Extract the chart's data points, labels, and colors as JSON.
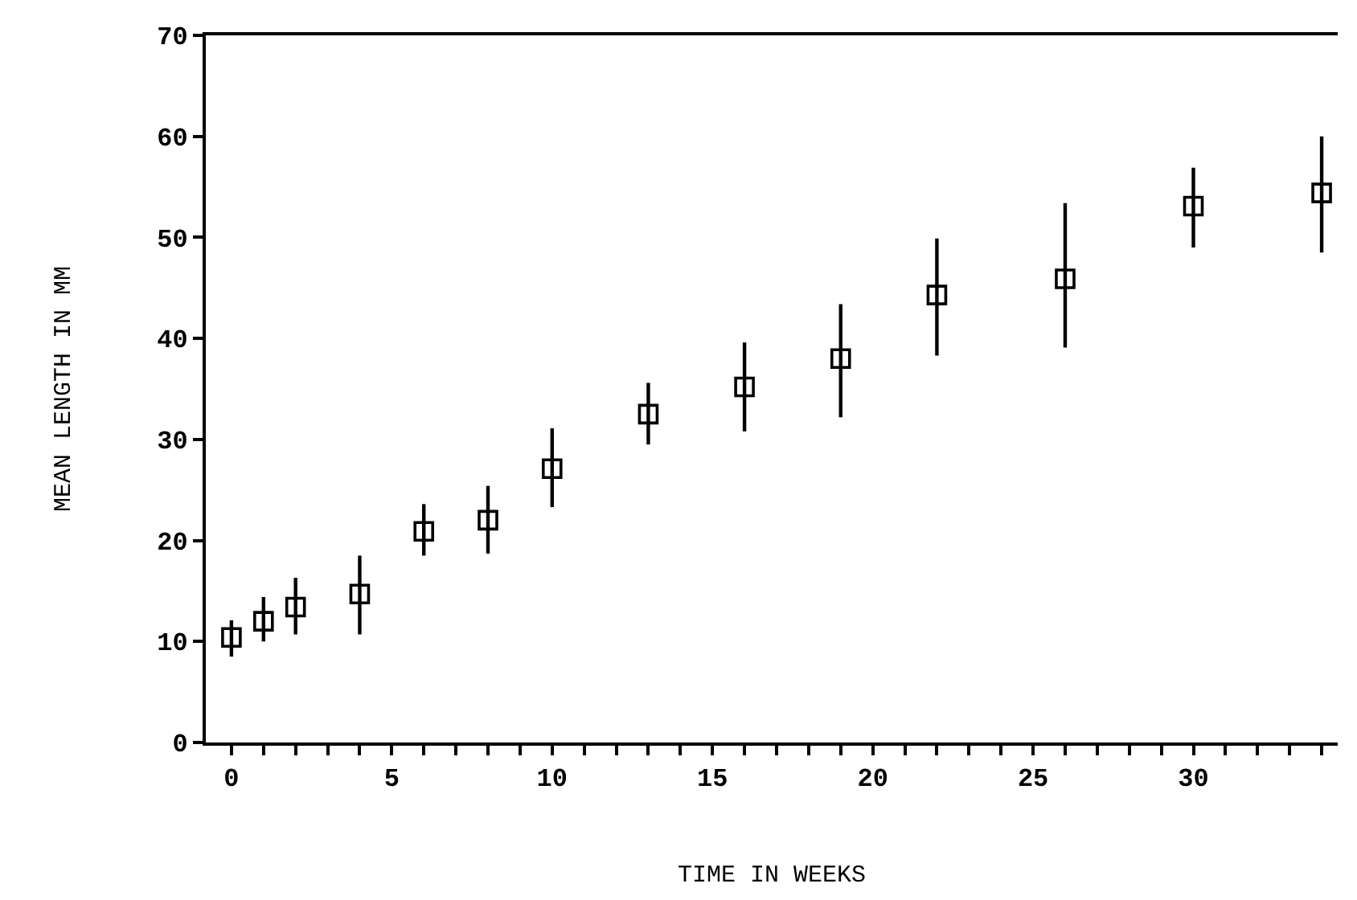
{
  "chart_data": {
    "type": "scatter",
    "xlabel": "TIME IN WEEKS",
    "ylabel": "MEAN LENGTH IN MM",
    "x": [
      0,
      1,
      2,
      4,
      6,
      8,
      10,
      13,
      16,
      19,
      22,
      26,
      30,
      34
    ],
    "values": [
      10.4,
      12.0,
      13.4,
      14.7,
      20.9,
      22.0,
      27.1,
      32.5,
      35.2,
      38.0,
      44.3,
      45.9,
      53.1,
      54.4
    ],
    "errors": [
      [
        8.5,
        12.1
      ],
      [
        10.0,
        14.4
      ],
      [
        10.7,
        16.3
      ],
      [
        10.7,
        18.5
      ],
      [
        18.5,
        23.6
      ],
      [
        18.7,
        25.4
      ],
      [
        23.3,
        31.1
      ],
      [
        29.5,
        35.6
      ],
      [
        30.8,
        39.6
      ],
      [
        32.2,
        43.4
      ],
      [
        38.3,
        49.9
      ],
      [
        39.1,
        53.4
      ],
      [
        49.0,
        56.9
      ],
      [
        48.5,
        60.0
      ]
    ],
    "color": "#000000",
    "marker": "square",
    "grid": false,
    "xlim": [
      -0.8,
      34.5
    ],
    "xticks": [
      0,
      {
        "value": 1,
        "label": null
      },
      {
        "value": 2,
        "label": null
      },
      {
        "value": 3,
        "label": null
      },
      {
        "value": 4,
        "label": null
      },
      5,
      {
        "value": 6,
        "label": null
      },
      {
        "value": 7,
        "label": null
      },
      {
        "value": 8,
        "label": null
      },
      {
        "value": 9,
        "label": null
      },
      10,
      {
        "value": 11,
        "label": null
      },
      {
        "value": 12,
        "label": null
      },
      {
        "value": 13,
        "label": null
      },
      {
        "value": 14,
        "label": null
      },
      15,
      {
        "value": 16,
        "label": null
      },
      {
        "value": 17,
        "label": null
      },
      {
        "value": 18,
        "label": null
      },
      {
        "value": 19,
        "label": null
      },
      20,
      {
        "value": 21,
        "label": null
      },
      {
        "value": 22,
        "label": null
      },
      {
        "value": 23,
        "label": null
      },
      {
        "value": 24,
        "label": null
      },
      25,
      {
        "value": 26,
        "label": null
      },
      {
        "value": 27,
        "label": null
      },
      {
        "value": 28,
        "label": null
      },
      {
        "value": 29,
        "label": null
      },
      30,
      {
        "value": 31,
        "label": null
      },
      {
        "value": 32,
        "label": null
      },
      {
        "value": 33,
        "label": null
      },
      {
        "value": 34,
        "label": null
      }
    ],
    "ylim": [
      0,
      70
    ],
    "yticks": [
      0,
      10,
      20,
      30,
      40,
      50,
      60,
      70
    ]
  }
}
